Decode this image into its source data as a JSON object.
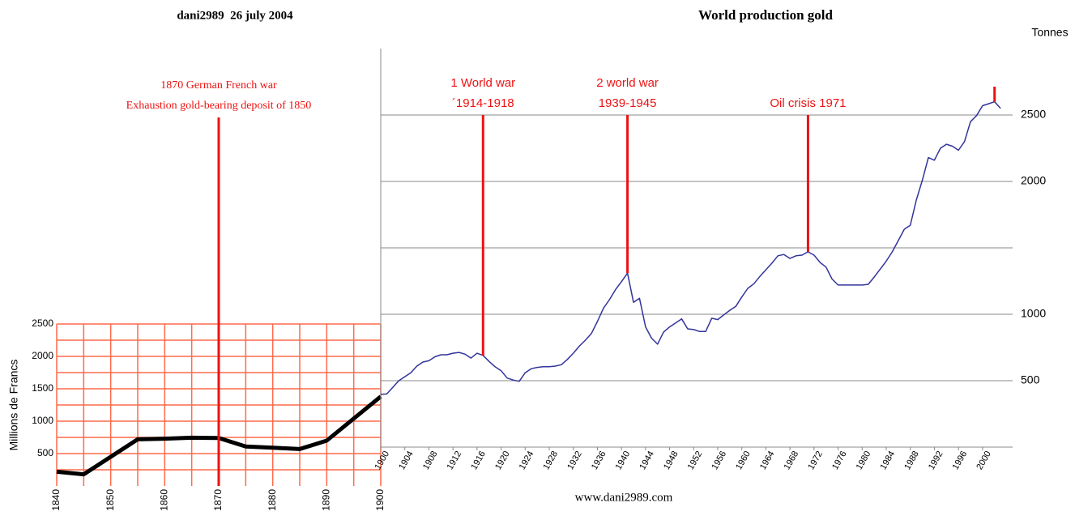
{
  "chart_data": [
    {
      "type": "line",
      "title": "dani2989  26 july 2004",
      "y_label": "Millions de Francs",
      "x": [
        1840,
        1845,
        1855,
        1860,
        1865,
        1870,
        1875,
        1880,
        1885,
        1890,
        1900
      ],
      "series": [
        {
          "color": "#000000",
          "values": [
            220,
            180,
            720,
            730,
            745,
            740,
            610,
            590,
            570,
            700,
            1380
          ]
        }
      ],
      "xlim": [
        1840,
        1900
      ],
      "xticks": [
        1840,
        1850,
        1860,
        1870,
        1880,
        1890,
        1900
      ],
      "ylim": [
        0,
        2500
      ],
      "yticks": [
        500,
        1000,
        1500,
        2000,
        2500
      ],
      "xgrid": [
        1840,
        1845,
        1850,
        1855,
        1860,
        1865,
        1870,
        1875,
        1880,
        1885,
        1890,
        1895,
        1900
      ],
      "ygrid": [
        250,
        500,
        750,
        1000,
        1250,
        1500,
        1750,
        2000,
        2250,
        2500
      ],
      "grid_color": "#ff6a4a",
      "annotations": [
        {
          "x": 1870,
          "text": [
            "1870 German French war",
            "Exhaustion gold-bearing deposit of 1850"
          ]
        }
      ]
    },
    {
      "type": "line",
      "title": "World production gold",
      "y_label": "Tonnes",
      "footer": "www.dani2989.com",
      "x": [
        1900,
        1901,
        1902,
        1903,
        1904,
        1905,
        1906,
        1907,
        1908,
        1909,
        1910,
        1911,
        1912,
        1913,
        1914,
        1915,
        1916,
        1917,
        1918,
        1919,
        1920,
        1921,
        1922,
        1923,
        1924,
        1925,
        1926,
        1927,
        1928,
        1929,
        1930,
        1931,
        1932,
        1933,
        1934,
        1935,
        1936,
        1937,
        1938,
        1939,
        1940,
        1941,
        1942,
        1943,
        1944,
        1945,
        1946,
        1947,
        1948,
        1949,
        1950,
        1951,
        1952,
        1953,
        1954,
        1955,
        1956,
        1957,
        1958,
        1959,
        1960,
        1961,
        1962,
        1963,
        1964,
        1965,
        1966,
        1967,
        1968,
        1969,
        1970,
        1971,
        1972,
        1973,
        1974,
        1975,
        1976,
        1977,
        1978,
        1979,
        1980,
        1981,
        1982,
        1983,
        1984,
        1985,
        1986,
        1987,
        1988,
        1989,
        1990,
        1991,
        1992,
        1993,
        1994,
        1995,
        1996,
        1997,
        1998,
        1999,
        2000,
        2001,
        2002,
        2003
      ],
      "series": [
        {
          "color": "#33339c",
          "values": [
            397,
            400,
            450,
            500,
            530,
            560,
            610,
            640,
            650,
            680,
            695,
            695,
            707,
            713,
            700,
            670,
            707,
            690,
            645,
            605,
            575,
            520,
            505,
            495,
            560,
            590,
            600,
            605,
            605,
            610,
            620,
            660,
            707,
            760,
            805,
            855,
            945,
            1045,
            1110,
            1185,
            1245,
            1310,
            1090,
            1120,
            905,
            820,
            775,
            865,
            905,
            935,
            965,
            890,
            885,
            870,
            870,
            970,
            960,
            995,
            1030,
            1060,
            1130,
            1195,
            1230,
            1285,
            1335,
            1385,
            1440,
            1450,
            1420,
            1440,
            1445,
            1470,
            1445,
            1390,
            1355,
            1265,
            1220,
            1220,
            1220,
            1220,
            1220,
            1225,
            1280,
            1340,
            1400,
            1470,
            1555,
            1640,
            1670,
            1860,
            2010,
            2180,
            2160,
            2250,
            2280,
            2265,
            2235,
            2300,
            2450,
            2495,
            2570,
            2585,
            2600,
            2550
          ]
        }
      ],
      "xlim": [
        1900,
        2005
      ],
      "xticks": [
        1900,
        1904,
        1908,
        1912,
        1916,
        1920,
        1924,
        1928,
        1932,
        1936,
        1940,
        1944,
        1948,
        1952,
        1956,
        1960,
        1964,
        1968,
        1972,
        1976,
        1980,
        1984,
        1988,
        1992,
        1996,
        2000
      ],
      "ylim": [
        0,
        3000
      ],
      "yticks": [
        500,
        1000,
        2000,
        2500
      ],
      "ygrid": [
        500,
        1000,
        1500,
        2000,
        2500
      ],
      "grid_color": "#888888",
      "annotations": [
        {
          "x": 1917,
          "text": [
            "1 World war",
            "´1914-1918"
          ]
        },
        {
          "x": 1941,
          "text": [
            "2 world war",
            "1939-1945"
          ]
        },
        {
          "x": 1971,
          "text": [
            "Oil crisis 1971"
          ]
        },
        {
          "x": 2002
        }
      ]
    }
  ]
}
